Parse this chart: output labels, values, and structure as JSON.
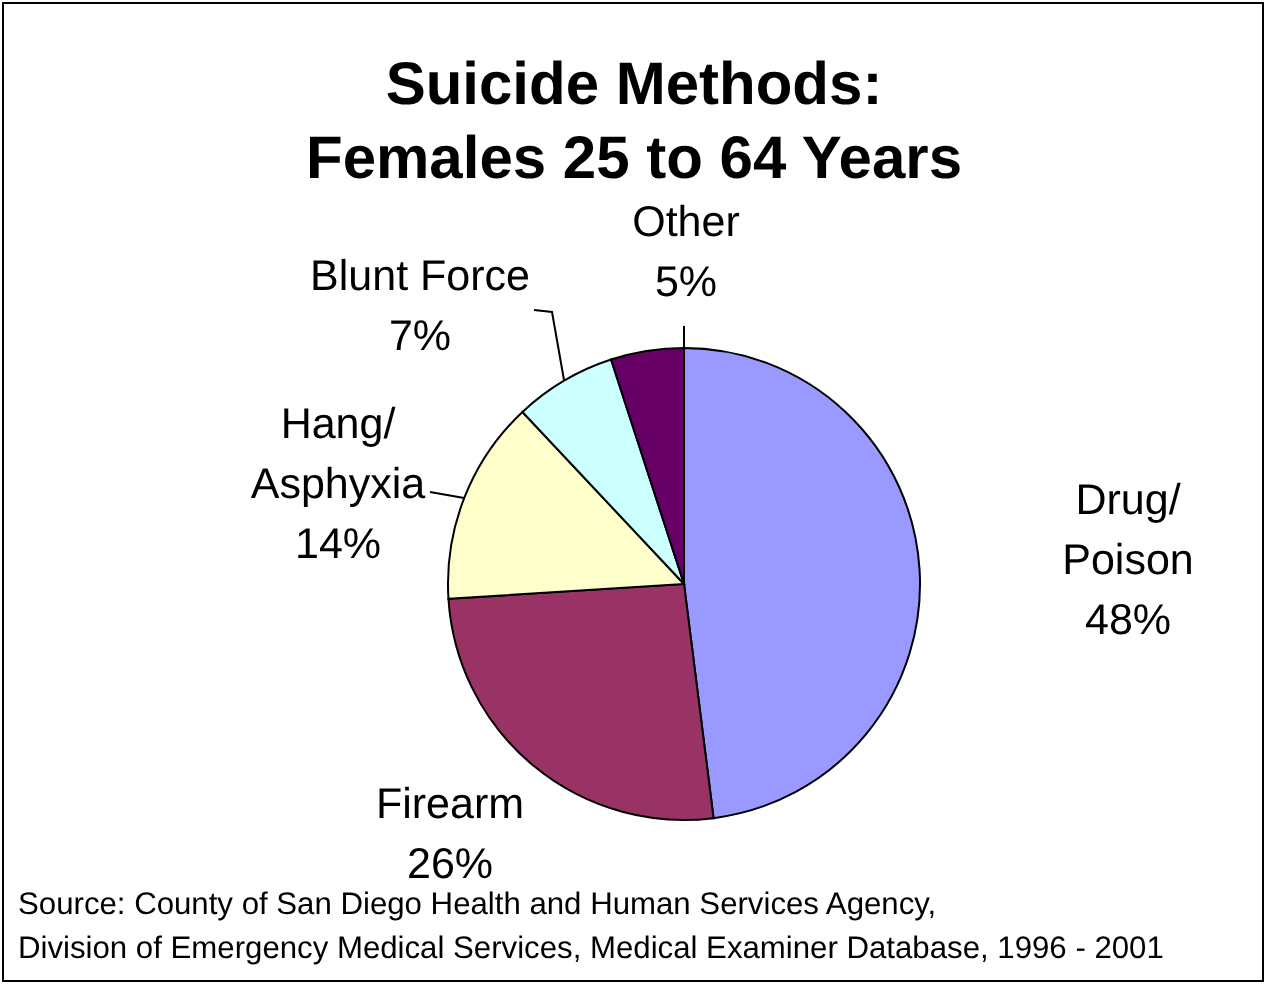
{
  "chart_data": {
    "type": "pie",
    "title": "Suicide Methods: Females 25 to 64 Years",
    "categories": [
      "Drug/Poison",
      "Firearm",
      "Hang/Asphyxia",
      "Blunt Force",
      "Other"
    ],
    "values": [
      48,
      26,
      14,
      7,
      5
    ],
    "colors": [
      "#9999ff",
      "#993366",
      "#ffffcc",
      "#ccffff",
      "#660066"
    ],
    "value_labels": [
      "48%",
      "26%",
      "14%",
      "7%",
      "5%"
    ],
    "annotations": [
      "Source: County of San Diego Health and Human Services Agency,",
      "Division of Emergency Medical Services, Medical Examiner Database, 1996 - 2001"
    ]
  }
}
